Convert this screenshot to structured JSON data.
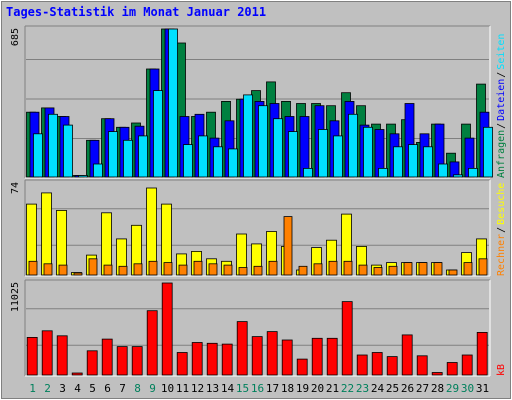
{
  "chart_data": {
    "type": "bar",
    "title": "Tages-Statistik im Monat Januar 2011",
    "categories": [
      "1",
      "2",
      "3",
      "4",
      "5",
      "6",
      "7",
      "8",
      "9",
      "10",
      "11",
      "12",
      "13",
      "14",
      "15",
      "16",
      "17",
      "18",
      "19",
      "20",
      "21",
      "22",
      "23",
      "24",
      "25",
      "26",
      "27",
      "28",
      "29",
      "30",
      "31"
    ],
    "weekend_days": [
      "1",
      "2",
      "8",
      "9",
      "15",
      "16",
      "22",
      "23",
      "29",
      "30"
    ],
    "panels": [
      {
        "name": "hits-pages-files",
        "ymax_label": "685",
        "ylim": [
          0,
          685
        ],
        "right_labels": [
          "Anfragen",
          "Dateien",
          "Seiten"
        ],
        "series": [
          {
            "name": "Anfragen",
            "color": "#008040",
            "values": [
              300,
              320,
              280,
              0,
              170,
              270,
              230,
              250,
              500,
              685,
              620,
              280,
              300,
              350,
              360,
              400,
              440,
              350,
              340,
              340,
              330,
              390,
              330,
              245,
              245,
              265,
              160,
              245,
              110,
              245,
              430
            ]
          },
          {
            "name": "Dateien",
            "color": "#0000ff",
            "values": [
              300,
              320,
              280,
              0,
              170,
              270,
              230,
              235,
              500,
              685,
              280,
              290,
              180,
              260,
              360,
              350,
              340,
              280,
              280,
              330,
              260,
              350,
              240,
              220,
              200,
              340,
              200,
              245,
              70,
              180,
              300
            ]
          },
          {
            "name": "Seiten",
            "color": "#00e0ff",
            "values": [
              200,
              290,
              240,
              0,
              60,
              210,
              170,
              190,
              400,
              685,
              150,
              190,
              140,
              130,
              380,
              330,
              270,
              210,
              40,
              220,
              190,
              290,
              230,
              40,
              140,
              150,
              140,
              60,
              10,
              40,
              230
            ]
          }
        ]
      },
      {
        "name": "visits-sites",
        "ymax_label": "74",
        "ylim": [
          0,
          74
        ],
        "right_labels": [
          "Rechner",
          "Besuche"
        ],
        "series": [
          {
            "name": "Besuche",
            "color": "#ffff00",
            "values": [
              57,
              66,
              52,
              2,
              16,
              50,
              29,
              40,
              70,
              57,
              17,
              19,
              13,
              11,
              33,
              25,
              35,
              23,
              4,
              22,
              28,
              49,
              23,
              8,
              10,
              10,
              10,
              10,
              4,
              18,
              29
            ]
          },
          {
            "name": "Rechner",
            "color": "#ff8000",
            "values": [
              11,
              9,
              8,
              1,
              13,
              8,
              7,
              9,
              11,
              10,
              8,
              11,
              9,
              8,
              6,
              7,
              11,
              47,
              7,
              9,
              11,
              11,
              8,
              6,
              7,
              10,
              10,
              10,
              4,
              10,
              13
            ]
          }
        ]
      },
      {
        "name": "kbytes",
        "ymax_label": "11025",
        "ylim": [
          0,
          11025
        ],
        "right_labels": [
          "kB"
        ],
        "series": [
          {
            "name": "kB",
            "color": "#ff0000",
            "values": [
              4500,
              5300,
              4700,
              100,
              2900,
              4300,
              3400,
              3400,
              7700,
              11025,
              2700,
              3900,
              3800,
              3700,
              6400,
              4600,
              5200,
              4200,
              1900,
              4400,
              4400,
              8800,
              2400,
              2700,
              2200,
              4800,
              2300,
              300,
              1500,
              2400,
              5100
            ]
          }
        ]
      }
    ]
  }
}
